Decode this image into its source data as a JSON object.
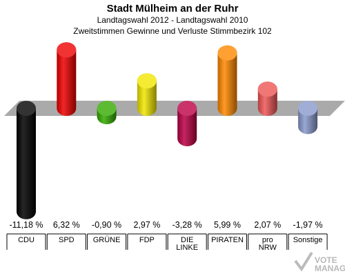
{
  "chart_data": {
    "type": "bar",
    "title": "Stadt Mülheim an der Ruhr",
    "subtitle1": "Landtagswahl 2012 - Landtagswahl 2010",
    "subtitle2": "Zweitstimmen Gewinne und Verluste Stimmbezirk 102",
    "categories": [
      {
        "line1": "CDU",
        "line2": ""
      },
      {
        "line1": "SPD",
        "line2": ""
      },
      {
        "line1": "GRÜNE",
        "line2": ""
      },
      {
        "line1": "FDP",
        "line2": ""
      },
      {
        "line1": "DIE",
        "line2": "LINKE"
      },
      {
        "line1": "PIRATEN",
        "line2": ""
      },
      {
        "line1": "pro",
        "line2": "NRW"
      },
      {
        "line1": "Sonstige",
        "line2": ""
      }
    ],
    "values": [
      -11.18,
      6.32,
      -0.9,
      2.97,
      -3.28,
      5.99,
      2.07,
      -1.97
    ],
    "value_labels": [
      "-11,18 %",
      "6,32 %",
      "-0,90 %",
      "2,97 %",
      "-3,28 %",
      "5,99 %",
      "2,07 %",
      "-1,97 %"
    ],
    "colors": [
      "#000000",
      "#ee0000",
      "#33aa00",
      "#f2e600",
      "#bb0044",
      "#ff8800",
      "#ee5555",
      "#8899cc"
    ]
  },
  "logo": {
    "line1": "VOTE",
    "line2": "MANAGER"
  }
}
